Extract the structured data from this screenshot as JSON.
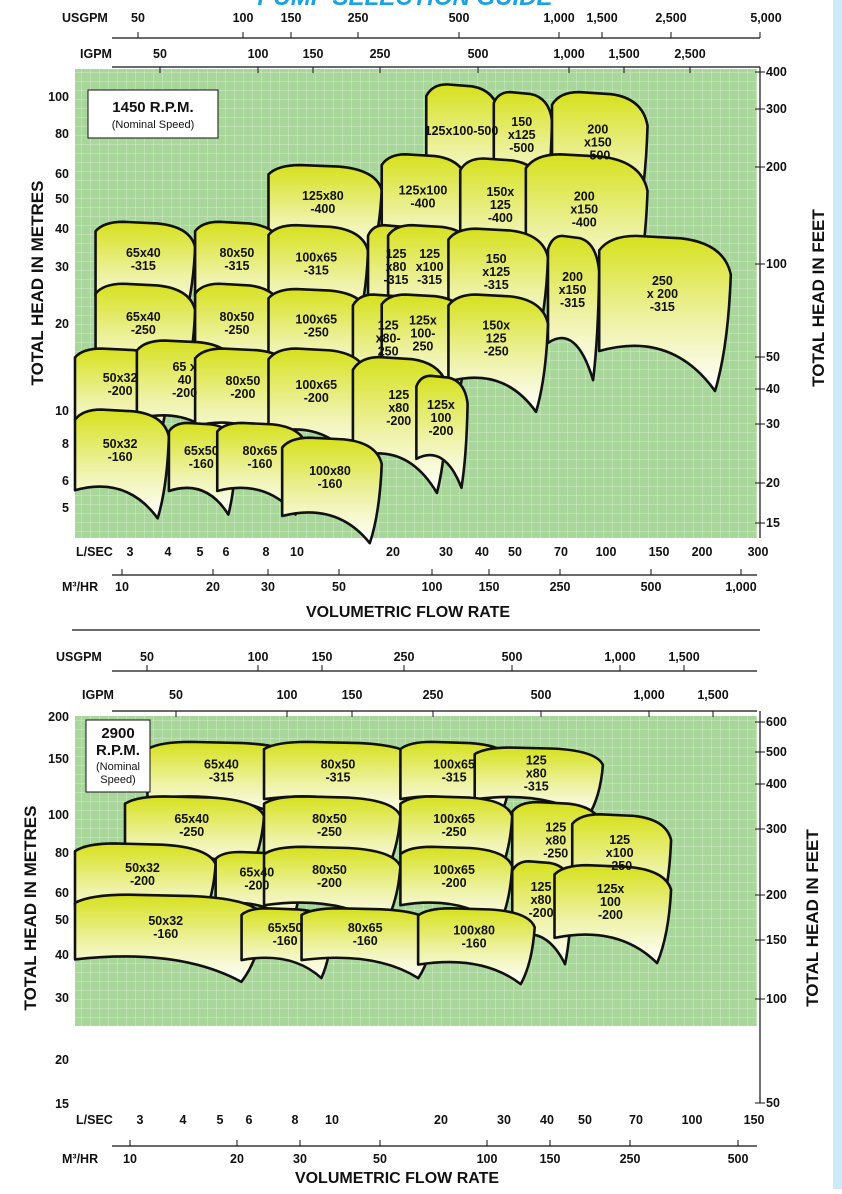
{
  "title_partial": "PUMP SELECTION GUIDE",
  "colors": {
    "plot_bg": "#a8d79a",
    "grid": "#e4f2de",
    "curve_top": "#d8e21a",
    "curve_bottom": "#ffffff",
    "outline": "#111111",
    "title": "#1aa3df",
    "side_bar": "#cdeaf8"
  },
  "chart_data": [
    {
      "type": "area",
      "speed_label": "1450 R.P.M.",
      "speed_sub": "(Nominal Speed)",
      "xlabel": "VOLUMETRIC FLOW RATE",
      "ylabel_left": "TOTAL HEAD IN METRES",
      "ylabel_right": "TOTAL HEAD IN FEET",
      "x_scale": "log",
      "y_scale": "log",
      "xlim_lsec": [
        2.6,
        300
      ],
      "ylim_m": [
        4.4,
        125
      ],
      "grid": true,
      "axes": {
        "usgpm": {
          "name": "USGPM",
          "ticks": [
            "50",
            "100",
            "150",
            "250",
            "500",
            "1,000",
            "1,500",
            "2,500",
            "5,000"
          ]
        },
        "igpm": {
          "name": "IGPM",
          "ticks": [
            "50",
            "100",
            "150",
            "250",
            "500",
            "1,000",
            "1,500",
            "2,500"
          ]
        },
        "lsec": {
          "name": "L/SEC",
          "ticks": [
            "3",
            "4",
            "5",
            "6",
            "8",
            "10",
            "20",
            "30",
            "40",
            "50",
            "70",
            "100",
            "150",
            "200",
            "300"
          ]
        },
        "m3hr": {
          "name": "M³/HR",
          "ticks": [
            "10",
            "20",
            "30",
            "50",
            "100",
            "150",
            "250",
            "500",
            "1,000"
          ]
        },
        "head_m": {
          "ticks": [
            "100",
            "80",
            "60",
            "50",
            "40",
            "30",
            "20",
            "10",
            "8",
            "6",
            "5"
          ]
        },
        "head_ft": {
          "ticks": [
            "400",
            "300",
            "200",
            "100",
            "50",
            "40",
            "30",
            "20",
            "15"
          ]
        }
      },
      "series": [
        {
          "name": "125x100-500",
          "lines": [
            "125x100-500"
          ],
          "q_lsec": [
            30,
            50
          ],
          "h_m": [
            56,
            112
          ]
        },
        {
          "name": "150x125-500",
          "lines": [
            "150",
            "x125",
            "-500"
          ],
          "q_lsec": [
            48,
            72
          ],
          "h_m": [
            56,
            106
          ]
        },
        {
          "name": "200x150-500",
          "lines": [
            "200",
            "x150",
            "-500"
          ],
          "q_lsec": [
            72,
            140
          ],
          "h_m": [
            50,
            106
          ]
        },
        {
          "name": "125x80-400",
          "lines": [
            "125x80",
            "-400"
          ],
          "q_lsec": [
            10,
            22
          ],
          "h_m": [
            36,
            63
          ]
        },
        {
          "name": "125x100-400",
          "lines": [
            "125x100",
            "-400"
          ],
          "q_lsec": [
            22,
            40
          ],
          "h_m": [
            36,
            68
          ]
        },
        {
          "name": "150x125-400",
          "lines": [
            "150x",
            "125",
            "-400"
          ],
          "q_lsec": [
            38,
            68
          ],
          "h_m": [
            33,
            66
          ]
        },
        {
          "name": "200x150-400",
          "lines": [
            "200",
            "x150",
            "-400"
          ],
          "q_lsec": [
            60,
            140
          ],
          "h_m": [
            30,
            68
          ]
        },
        {
          "name": "65x40-315",
          "lines": [
            "65x40",
            "-315"
          ],
          "q_lsec": [
            3,
            6
          ],
          "h_m": [
            24,
            42
          ]
        },
        {
          "name": "80x50-315",
          "lines": [
            "80x50",
            "-315"
          ],
          "q_lsec": [
            6,
            11
          ],
          "h_m": [
            24,
            42
          ]
        },
        {
          "name": "100x65-315",
          "lines": [
            "100x65",
            "-315"
          ],
          "q_lsec": [
            10,
            20
          ],
          "h_m": [
            23,
            41
          ]
        },
        {
          "name": "125x80-315",
          "lines": [
            "125",
            "x80",
            "-315"
          ],
          "q_lsec": [
            20,
            30
          ],
          "h_m": [
            22,
            41
          ]
        },
        {
          "name": "125x100-315",
          "lines": [
            "125",
            "x100",
            "-315"
          ],
          "q_lsec": [
            23,
            42
          ],
          "h_m": [
            22,
            41
          ]
        },
        {
          "name": "150x125-315",
          "lines": [
            "150",
            "x125",
            "-315"
          ],
          "q_lsec": [
            35,
            70
          ],
          "h_m": [
            21,
            40
          ]
        },
        {
          "name": "200x150-315",
          "lines": [
            "200",
            "x150",
            "-315"
          ],
          "q_lsec": [
            70,
            100
          ],
          "h_m": [
            17,
            38
          ]
        },
        {
          "name": "250x200-315",
          "lines": [
            "250",
            "x 200",
            "-315"
          ],
          "q_lsec": [
            100,
            250
          ],
          "h_m": [
            16,
            38
          ]
        },
        {
          "name": "65x40-250",
          "lines": [
            "65x40",
            "-250"
          ],
          "q_lsec": [
            3,
            6
          ],
          "h_m": [
            15,
            27
          ]
        },
        {
          "name": "80x50-250",
          "lines": [
            "80x50",
            "-250"
          ],
          "q_lsec": [
            6,
            11
          ],
          "h_m": [
            15,
            27
          ]
        },
        {
          "name": "100x65-250",
          "lines": [
            "100x65",
            "-250"
          ],
          "q_lsec": [
            10,
            20
          ],
          "h_m": [
            15,
            26
          ]
        },
        {
          "name": "125x80-250",
          "lines": [
            "125",
            "x80-",
            "250"
          ],
          "q_lsec": [
            18,
            30
          ],
          "h_m": [
            13,
            25
          ]
        },
        {
          "name": "125x100-250",
          "lines": [
            "125x",
            "100-",
            "250"
          ],
          "q_lsec": [
            22,
            40
          ],
          "h_m": [
            14,
            25
          ]
        },
        {
          "name": "150x125-250",
          "lines": [
            "150x",
            "125",
            "-250"
          ],
          "q_lsec": [
            35,
            70
          ],
          "h_m": [
            13,
            25
          ]
        },
        {
          "name": "50x32-200",
          "lines": [
            "50x32",
            "-200"
          ],
          "q_lsec": [
            2.6,
            5
          ],
          "h_m": [
            10,
            17
          ]
        },
        {
          "name": "65x40-200",
          "lines": [
            "65 x",
            "40",
            "-200"
          ],
          "q_lsec": [
            4,
            8
          ],
          "h_m": [
            10,
            18
          ]
        },
        {
          "name": "80x50-200",
          "lines": [
            "80x50",
            "-200"
          ],
          "q_lsec": [
            6,
            12
          ],
          "h_m": [
            9.5,
            17
          ]
        },
        {
          "name": "100x65-200",
          "lines": [
            "100x65",
            "-200"
          ],
          "q_lsec": [
            10,
            20
          ],
          "h_m": [
            9,
            17
          ]
        },
        {
          "name": "125x80-200",
          "lines": [
            "125",
            "x80",
            "-200"
          ],
          "q_lsec": [
            18,
            35
          ],
          "h_m": [
            7.5,
            16
          ]
        },
        {
          "name": "125x100-200",
          "lines": [
            "125x",
            "100",
            "-200"
          ],
          "q_lsec": [
            28,
            40
          ],
          "h_m": [
            7.5,
            14
          ]
        },
        {
          "name": "50x32-160",
          "lines": [
            "50x32",
            "-160"
          ],
          "q_lsec": [
            2.6,
            5
          ],
          "h_m": [
            6,
            11
          ]
        },
        {
          "name": "65x50-160",
          "lines": [
            "65x50",
            "-160"
          ],
          "q_lsec": [
            5,
            8
          ],
          "h_m": [
            6,
            10
          ]
        },
        {
          "name": "80x65-160",
          "lines": [
            "80x65",
            "-160"
          ],
          "q_lsec": [
            7,
            13
          ],
          "h_m": [
            6,
            10
          ]
        },
        {
          "name": "100x80-160",
          "lines": [
            "100x80",
            "-160"
          ],
          "q_lsec": [
            11,
            22
          ],
          "h_m": [
            5,
            9
          ]
        }
      ]
    },
    {
      "type": "area",
      "speed_label": "2900",
      "speed_label2": "R.P.M.",
      "speed_sub": "(Nominal",
      "speed_sub2": "Speed)",
      "xlabel": "VOLUMETRIC FLOW RATE",
      "ylabel_left": "TOTAL HEAD IN METRES",
      "ylabel_right": "TOTAL HEAD IN FEET",
      "x_scale": "log",
      "y_scale": "log",
      "xlim_lsec": [
        2.6,
        150
      ],
      "ylim_m": [
        14.5,
        210
      ],
      "grid": true,
      "axes": {
        "usgpm": {
          "name": "USGPM",
          "ticks": [
            "50",
            "100",
            "150",
            "250",
            "500",
            "1,000",
            "1,500"
          ]
        },
        "igpm": {
          "name": "IGPM",
          "ticks": [
            "50",
            "100",
            "150",
            "250",
            "500",
            "1,000",
            "1,500"
          ]
        },
        "lsec": {
          "name": "L/SEC",
          "ticks": [
            "3",
            "4",
            "5",
            "6",
            "8",
            "10",
            "20",
            "30",
            "40",
            "50",
            "70",
            "100",
            "150"
          ]
        },
        "m3hr": {
          "name": "M³/HR",
          "ticks": [
            "10",
            "20",
            "30",
            "50",
            "100",
            "150",
            "250",
            "500"
          ]
        },
        "head_m": {
          "ticks": [
            "200",
            "150",
            "100",
            "80",
            "60",
            "50",
            "40",
            "30",
            "20",
            "15"
          ]
        },
        "head_ft": {
          "ticks": [
            "600",
            "500",
            "400",
            "300",
            "200",
            "150",
            "100",
            "50"
          ]
        }
      },
      "series": [
        {
          "name": "65x40-315",
          "lines": [
            "65x40",
            "-315"
          ],
          "q_lsec": [
            4,
            10
          ],
          "h_m": [
            100,
            168
          ]
        },
        {
          "name": "80x50-315",
          "lines": [
            "80x50",
            "-315"
          ],
          "q_lsec": [
            8,
            20
          ],
          "h_m": [
            100,
            168
          ]
        },
        {
          "name": "100x65-315",
          "lines": [
            "100x65",
            "-315"
          ],
          "q_lsec": [
            18,
            35
          ],
          "h_m": [
            100,
            168
          ]
        },
        {
          "name": "125x80-315",
          "lines": [
            "125",
            "x80",
            "-315"
          ],
          "q_lsec": [
            28,
            60
          ],
          "h_m": [
            100,
            160
          ]
        },
        {
          "name": "65x40-250",
          "lines": [
            "65x40",
            "-250"
          ],
          "q_lsec": [
            3.5,
            8
          ],
          "h_m": [
            62,
            105
          ]
        },
        {
          "name": "80x50-250",
          "lines": [
            "80x50",
            "-250"
          ],
          "q_lsec": [
            8,
            18
          ],
          "h_m": [
            62,
            105
          ]
        },
        {
          "name": "100x65-250",
          "lines": [
            "100x65",
            "-250"
          ],
          "q_lsec": [
            18,
            35
          ],
          "h_m": [
            62,
            105
          ]
        },
        {
          "name": "125x80-250",
          "lines": [
            "125",
            "x80",
            "-250"
          ],
          "q_lsec": [
            35,
            60
          ],
          "h_m": [
            50,
            100
          ]
        },
        {
          "name": "125x100-250",
          "lines": [
            "125",
            "x100",
            "-250"
          ],
          "q_lsec": [
            50,
            90
          ],
          "h_m": [
            45,
            90
          ]
        },
        {
          "name": "50x32-200",
          "lines": [
            "50x32",
            "-200"
          ],
          "q_lsec": [
            2.6,
            6
          ],
          "h_m": [
            40,
            70
          ]
        },
        {
          "name": "65x40-200",
          "lines": [
            "65x40",
            "-200"
          ],
          "q_lsec": [
            6,
            10
          ],
          "h_m": [
            40,
            65
          ]
        },
        {
          "name": "80x50-200",
          "lines": [
            "80x50",
            "-200"
          ],
          "q_lsec": [
            8,
            18
          ],
          "h_m": [
            40,
            68
          ]
        },
        {
          "name": "100x65-200",
          "lines": [
            "100x65",
            "-200"
          ],
          "q_lsec": [
            18,
            35
          ],
          "h_m": [
            40,
            68
          ]
        },
        {
          "name": "125x80-200",
          "lines": [
            "125",
            "x80",
            "-200"
          ],
          "q_lsec": [
            35,
            50
          ],
          "h_m": [
            30,
            60
          ]
        },
        {
          "name": "125x100-200",
          "lines": [
            "125x",
            "100",
            "-200"
          ],
          "q_lsec": [
            45,
            90
          ],
          "h_m": [
            30,
            58
          ]
        },
        {
          "name": "50x32-160",
          "lines": [
            "50x32",
            "-160"
          ],
          "q_lsec": [
            2.6,
            8
          ],
          "h_m": [
            25,
            45
          ]
        },
        {
          "name": "65x50-160",
          "lines": [
            "65x50",
            "-160"
          ],
          "q_lsec": [
            7,
            12
          ],
          "h_m": [
            25,
            40
          ]
        },
        {
          "name": "80x65-160",
          "lines": [
            "80x65",
            "-160"
          ],
          "q_lsec": [
            10,
            22
          ],
          "h_m": [
            25,
            40
          ]
        },
        {
          "name": "100x80-160",
          "lines": [
            "100x80",
            "-160"
          ],
          "q_lsec": [
            20,
            40
          ],
          "h_m": [
            24,
            40
          ]
        }
      ]
    }
  ]
}
